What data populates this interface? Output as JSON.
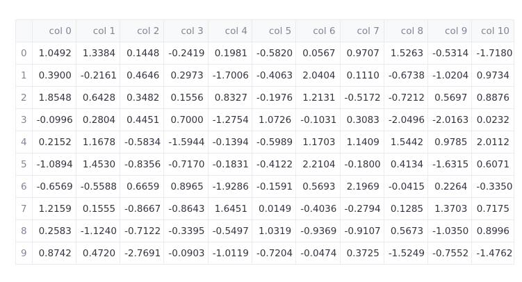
{
  "table": {
    "columns": [
      "col 0",
      "col 1",
      "col 2",
      "col 3",
      "col 4",
      "col 5",
      "col 6",
      "col 7",
      "col 8",
      "col 9",
      "col 10"
    ],
    "row_labels": [
      "0",
      "1",
      "2",
      "3",
      "4",
      "5",
      "6",
      "7",
      "8",
      "9"
    ],
    "rows": [
      [
        "1.0492",
        "1.3384",
        "0.1448",
        "-0.2419",
        "0.1981",
        "-0.5820",
        "0.0567",
        "0.9707",
        "1.5263",
        "-0.5314",
        "-1.7180"
      ],
      [
        "0.3900",
        "-0.2161",
        "0.4646",
        "0.2973",
        "-1.7006",
        "-0.4063",
        "2.0404",
        "0.1110",
        "-0.6738",
        "-1.0204",
        "0.9734"
      ],
      [
        "1.8548",
        "0.6428",
        "0.3482",
        "0.1556",
        "0.8327",
        "-0.1976",
        "1.2131",
        "-0.5172",
        "-0.7212",
        "0.5697",
        "0.8876"
      ],
      [
        "-0.0996",
        "0.2804",
        "0.4451",
        "0.7000",
        "-1.2754",
        "1.0726",
        "-0.1031",
        "0.3083",
        "-2.0496",
        "-2.0163",
        "0.0232"
      ],
      [
        "0.2152",
        "1.1678",
        "-0.5834",
        "-1.5944",
        "-0.1394",
        "-0.5989",
        "1.1703",
        "1.1409",
        "1.5442",
        "0.9785",
        "2.0112"
      ],
      [
        "-1.0894",
        "1.4530",
        "-0.8356",
        "-0.7170",
        "-0.1831",
        "-0.4122",
        "2.2104",
        "-0.1800",
        "0.4134",
        "-1.6315",
        "0.6071"
      ],
      [
        "-0.6569",
        "-0.5588",
        "0.6659",
        "0.8965",
        "-1.9286",
        "-0.1591",
        "0.5693",
        "2.1969",
        "-0.0415",
        "0.2264",
        "-0.3350"
      ],
      [
        "1.2159",
        "0.1555",
        "-0.8667",
        "-0.8643",
        "1.6451",
        "0.0149",
        "-0.4036",
        "-0.2794",
        "0.1285",
        "1.3703",
        "0.7175"
      ],
      [
        "0.2583",
        "-1.1240",
        "-0.7122",
        "-0.3395",
        "-0.5497",
        "1.0319",
        "-0.9369",
        "-0.9107",
        "0.5673",
        "-1.0350",
        "0.8996"
      ],
      [
        "0.8742",
        "0.4720",
        "-2.7691",
        "-0.0903",
        "-1.0119",
        "-0.7204",
        "-0.0474",
        "0.3725",
        "-1.5249",
        "-0.7552",
        "-1.4762"
      ]
    ]
  }
}
